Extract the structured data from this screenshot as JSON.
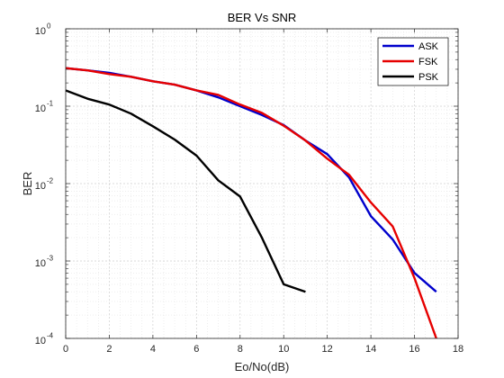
{
  "chart_data": {
    "type": "line",
    "title": "BER Vs SNR",
    "xlabel": "Eo/No(dB)",
    "ylabel": "BER",
    "xlim": [
      0,
      18
    ],
    "ylim": [
      0.0001,
      1
    ],
    "yscale": "log",
    "x_ticks": [
      "0",
      "2",
      "4",
      "6",
      "8",
      "10",
      "12",
      "14",
      "16",
      "18"
    ],
    "y_ticks": [
      {
        "base": "10",
        "exp": "-4"
      },
      {
        "base": "10",
        "exp": "-3"
      },
      {
        "base": "10",
        "exp": "-2"
      },
      {
        "base": "10",
        "exp": "-1"
      },
      {
        "base": "10",
        "exp": "0"
      }
    ],
    "grid": true,
    "minor_grid": true,
    "legend_position": "top-right",
    "series": [
      {
        "name": "ASK",
        "color": "#0000cc",
        "x": [
          0,
          1,
          2,
          3,
          4,
          5,
          6,
          7,
          8,
          9,
          10,
          11,
          12,
          13,
          14,
          15,
          16,
          17
        ],
        "y": [
          0.31,
          0.29,
          0.27,
          0.24,
          0.21,
          0.19,
          0.16,
          0.13,
          0.1,
          0.077,
          0.057,
          0.036,
          0.024,
          0.012,
          0.0038,
          0.0019,
          0.0007,
          0.0004
        ]
      },
      {
        "name": "FSK",
        "color": "#e60000",
        "x": [
          0,
          1,
          2,
          3,
          4,
          5,
          6,
          7,
          8,
          9,
          10,
          11,
          12,
          13,
          14,
          15,
          16,
          17
        ],
        "y": [
          0.31,
          0.29,
          0.26,
          0.24,
          0.21,
          0.19,
          0.16,
          0.14,
          0.105,
          0.082,
          0.056,
          0.036,
          0.021,
          0.013,
          0.0057,
          0.0028,
          0.0006,
          0.0001
        ]
      },
      {
        "name": "PSK",
        "color": "#000000",
        "x": [
          0,
          1,
          2,
          3,
          4,
          5,
          6,
          7,
          8,
          9,
          10,
          11
        ],
        "y": [
          0.16,
          0.125,
          0.105,
          0.08,
          0.055,
          0.037,
          0.023,
          0.011,
          0.0068,
          0.002,
          0.0005,
          0.0004
        ]
      }
    ]
  }
}
